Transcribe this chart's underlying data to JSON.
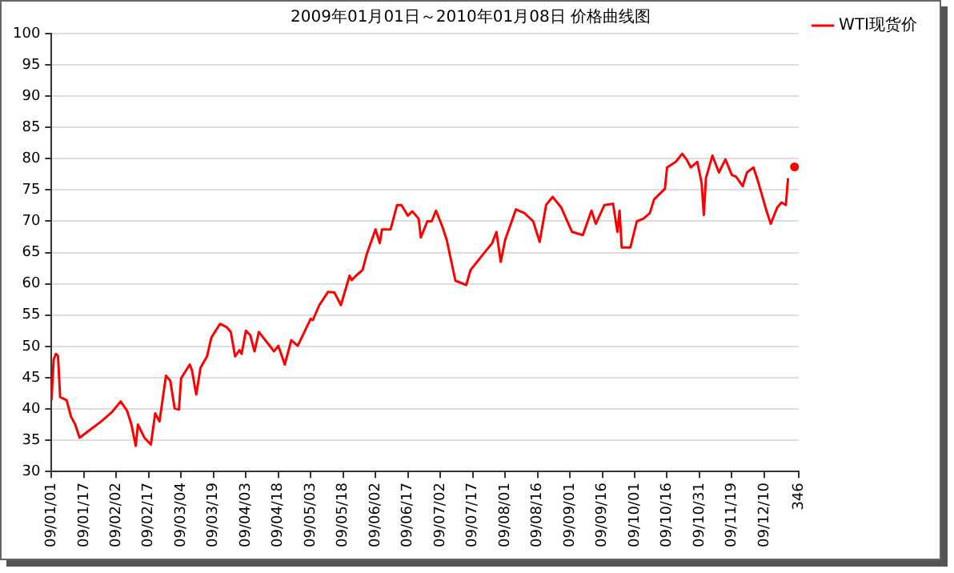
{
  "chart_data": {
    "type": "line",
    "title": "2009年01月01日～2010年01月08日 价格曲线图",
    "categories": [
      "09/01/01",
      null,
      null,
      null,
      null,
      null,
      null,
      null,
      null,
      null,
      null,
      null,
      null,
      null,
      null,
      "09/01/17",
      null,
      null,
      null,
      null,
      null,
      null,
      null,
      null,
      null,
      null,
      null,
      null,
      null,
      null,
      "09/02/02",
      null,
      null,
      null,
      null,
      null,
      null,
      null,
      null,
      null,
      null,
      null,
      null,
      null,
      null,
      "09/02/17",
      null,
      null,
      null,
      null,
      null,
      null,
      null,
      null,
      null,
      null,
      null,
      null,
      null,
      null,
      "09/03/04",
      null,
      null,
      null,
      null,
      null,
      null,
      null,
      null,
      null,
      null,
      null,
      null,
      null,
      null,
      "09/03/19",
      null,
      null,
      null,
      null,
      null,
      null,
      null,
      null,
      null,
      null,
      null,
      null,
      null,
      null,
      "09/04/03",
      null,
      null,
      null,
      null,
      null,
      null,
      null,
      null,
      null,
      null,
      null,
      null,
      null,
      null,
      "09/04/18",
      null,
      null,
      null,
      null,
      null,
      null,
      null,
      null,
      null,
      null,
      null,
      null,
      null,
      null,
      "09/05/03",
      null,
      null,
      null,
      null,
      null,
      null,
      null,
      null,
      null,
      null,
      null,
      null,
      null,
      null,
      "09/05/18",
      null,
      null,
      null,
      null,
      null,
      null,
      null,
      null,
      null,
      null,
      null,
      null,
      null,
      null,
      "09/06/02",
      null,
      null,
      null,
      null,
      null,
      null,
      null,
      null,
      null,
      null,
      null,
      null,
      null,
      null,
      "09/06/17",
      null,
      null,
      null,
      null,
      null,
      null,
      null,
      null,
      null,
      null,
      null,
      null,
      null,
      null,
      "09/07/02",
      null,
      null,
      null,
      null,
      null,
      null,
      null,
      null,
      null,
      null,
      null,
      null,
      null,
      null,
      "09/07/17",
      null,
      null,
      null,
      null,
      null,
      null,
      null,
      null,
      null,
      null,
      null,
      null,
      null,
      null,
      "09/08/01",
      null,
      null,
      null,
      null,
      null,
      null,
      null,
      null,
      null,
      null,
      null,
      null,
      null,
      null,
      "09/08/16",
      null,
      null,
      null,
      null,
      null,
      null,
      null,
      null,
      null,
      null,
      null,
      null,
      null,
      null,
      "09/09/01",
      null,
      null,
      null,
      null,
      null,
      null,
      null,
      null,
      null,
      null,
      null,
      null,
      null,
      null,
      "09/09/16",
      null,
      null,
      null,
      null,
      null,
      null,
      null,
      null,
      null,
      null,
      null,
      null,
      null,
      null,
      "09/10/01",
      null,
      null,
      null,
      null,
      null,
      null,
      null,
      null,
      null,
      null,
      null,
      null,
      null,
      null,
      "09/10/16",
      null,
      null,
      null,
      null,
      null,
      null,
      null,
      null,
      null,
      null,
      null,
      null,
      null,
      null,
      "09/10/31",
      null,
      null,
      null,
      null,
      null,
      null,
      null,
      null,
      null,
      null,
      null,
      null,
      null,
      null,
      "09/11/19",
      null,
      null,
      null,
      null,
      null,
      null,
      null,
      null,
      null,
      null,
      null,
      null,
      null,
      null,
      "09/12/10",
      null,
      null,
      null,
      null,
      null,
      null,
      null,
      null,
      null,
      null,
      null,
      null,
      null,
      null,
      null,
      "346"
    ],
    "ylim": [
      30,
      100
    ],
    "yticks": [
      30,
      35,
      40,
      45,
      50,
      55,
      60,
      65,
      70,
      75,
      80,
      85,
      90,
      95,
      100
    ],
    "grid": "y",
    "legend": "top right",
    "marker": "none",
    "line_style": "solid",
    "series": [
      {
        "name": "WTI现货价",
        "color": "#ff0000",
        "values": [
          41.4,
          47.9,
          48.8,
          48.5,
          41.9,
          null,
          null,
          41.4,
          null,
          38.8,
          null,
          37.5,
          null,
          35.4,
          null,
          null,
          null,
          null,
          36.7,
          null,
          null,
          null,
          null,
          38.0,
          null,
          null,
          null,
          null,
          39.5,
          null,
          null,
          null,
          41.2,
          null,
          null,
          39.7,
          null,
          37.5,
          null,
          34.1,
          37.5,
          null,
          null,
          35.4,
          null,
          null,
          34.3,
          null,
          39.3,
          null,
          38.0,
          null,
          null,
          45.3,
          null,
          44.5,
          null,
          40.1,
          null,
          39.9,
          44.9,
          null,
          null,
          null,
          47.1,
          46.2,
          null,
          42.3,
          null,
          46.6,
          null,
          null,
          48.4,
          null,
          51.4,
          null,
          null,
          null,
          53.6,
          null,
          null,
          53.1,
          null,
          52.3,
          null,
          48.4,
          null,
          49.4,
          48.8,
          null,
          52.5,
          null,
          51.8,
          null,
          49.2,
          null,
          52.3,
          null,
          null,
          null,
          null,
          50.1,
          null,
          49.2,
          null,
          50.1,
          null,
          null,
          47.1,
          null,
          null,
          51.0,
          null,
          null,
          50.1,
          null,
          null,
          null,
          null,
          null,
          54.4,
          54.2,
          null,
          null,
          56.6,
          null,
          null,
          null,
          58.7,
          null,
          null,
          58.6,
          null,
          null,
          56.6,
          null,
          null,
          null,
          61.3,
          60.6,
          null,
          61.3,
          null,
          null,
          62.2,
          null,
          64.8,
          null,
          null,
          null,
          68.7,
          null,
          66.5,
          68.7,
          null,
          null,
          null,
          68.7,
          null,
          null,
          72.6,
          null,
          72.6,
          null,
          null,
          70.9,
          null,
          71.6,
          null,
          null,
          70.4,
          67.4,
          null,
          null,
          70.0,
          null,
          70.0,
          null,
          71.7,
          null,
          null,
          69.1,
          null,
          67.0,
          null,
          null,
          null,
          60.5,
          null,
          null,
          null,
          null,
          59.8,
          null,
          62.2,
          null,
          null,
          null,
          null,
          null,
          64.8,
          null,
          null,
          null,
          66.5,
          null,
          68.3,
          null,
          63.5,
          null,
          67.0,
          null,
          null,
          null,
          null,
          71.9,
          null,
          null,
          null,
          71.3,
          null,
          null,
          null,
          70.0,
          null,
          null,
          66.7,
          null,
          null,
          72.6,
          null,
          null,
          73.9,
          null,
          null,
          null,
          72.2,
          null,
          null,
          null,
          null,
          68.3,
          null,
          null,
          null,
          null,
          67.8,
          null,
          null,
          null,
          71.7,
          null,
          69.6,
          null,
          null,
          null,
          72.6,
          null,
          null,
          null,
          72.8,
          null,
          68.3,
          71.7,
          65.8,
          null,
          null,
          null,
          65.8,
          null,
          null,
          70.0,
          null,
          null,
          70.4,
          null,
          null,
          71.3,
          null,
          73.5,
          null,
          null,
          null,
          null,
          75.2,
          78.6,
          null,
          null,
          null,
          79.5,
          null,
          null,
          80.8,
          null,
          79.9,
          null,
          78.6,
          null,
          null,
          79.5,
          null,
          76.1,
          71.0,
          76.9,
          null,
          null,
          80.5,
          null,
          null,
          77.8,
          null,
          null,
          79.9,
          null,
          null,
          77.4,
          null,
          77.1,
          null,
          null,
          75.6,
          null,
          77.8,
          null,
          null,
          78.6,
          null,
          76.5,
          null,
          null,
          null,
          71.7,
          null,
          69.6,
          null,
          null,
          72.2,
          null,
          73.0,
          null,
          72.6,
          76.9,
          null,
          null,
          null,
          null,
          null
        ]
      },
      {
        "color": "#ff0000",
        "marker": "circle",
        "values": [
          null,
          null,
          null,
          null,
          null,
          null,
          null,
          null,
          null,
          null,
          null,
          null,
          null,
          null,
          null,
          null,
          null,
          null,
          null,
          null,
          null,
          null,
          null,
          null,
          null,
          null,
          null,
          null,
          null,
          null,
          null,
          null,
          null,
          null,
          null,
          null,
          null,
          null,
          null,
          null,
          null,
          null,
          null,
          null,
          null,
          null,
          null,
          null,
          null,
          null,
          null,
          null,
          null,
          null,
          null,
          null,
          null,
          null,
          null,
          null,
          null,
          null,
          null,
          null,
          null,
          null,
          null,
          null,
          null,
          null,
          null,
          null,
          null,
          null,
          null,
          null,
          null,
          null,
          null,
          null,
          null,
          null,
          null,
          null,
          null,
          null,
          null,
          null,
          null,
          null,
          null,
          null,
          null,
          null,
          null,
          null,
          null,
          null,
          null,
          null,
          null,
          null,
          null,
          null,
          null,
          null,
          null,
          null,
          null,
          null,
          null,
          null,
          null,
          null,
          null,
          null,
          null,
          null,
          null,
          null,
          null,
          null,
          null,
          null,
          null,
          null,
          null,
          null,
          null,
          null,
          null,
          null,
          null,
          null,
          null,
          null,
          null,
          null,
          null,
          null,
          null,
          null,
          null,
          null,
          null,
          null,
          null,
          null,
          null,
          null,
          null,
          null,
          null,
          null,
          null,
          null,
          null,
          null,
          null,
          null,
          null,
          null,
          null,
          null,
          null,
          null,
          null,
          null,
          null,
          null,
          null,
          null,
          null,
          null,
          null,
          null,
          null,
          null,
          null,
          null,
          null,
          null,
          null,
          null,
          null,
          null,
          null,
          null,
          null,
          null,
          null,
          null,
          null,
          null,
          null,
          null,
          null,
          null,
          null,
          null,
          null,
          null,
          null,
          null,
          null,
          null,
          null,
          null,
          null,
          null,
          null,
          null,
          null,
          null,
          null,
          null,
          null,
          null,
          null,
          null,
          null,
          null,
          null,
          null,
          null,
          null,
          null,
          null,
          null,
          null,
          null,
          null,
          null,
          null,
          null,
          null,
          null,
          null,
          null,
          null,
          null,
          null,
          null,
          null,
          null,
          null,
          null,
          null,
          null,
          null,
          null,
          null,
          null,
          null,
          null,
          null,
          null,
          null,
          null,
          null,
          null,
          null,
          null,
          null,
          null,
          null,
          null,
          null,
          null,
          null,
          null,
          null,
          null,
          null,
          null,
          null,
          null,
          null,
          null,
          null,
          null,
          null,
          null,
          null,
          null,
          null,
          null,
          null,
          null,
          null,
          null,
          null,
          null,
          null,
          null,
          null,
          null,
          null,
          null,
          null,
          null,
          null,
          null,
          null,
          null,
          null,
          null,
          null,
          null,
          null,
          null,
          null,
          null,
          null,
          null,
          null,
          null,
          null,
          null,
          null,
          null,
          null,
          null,
          null,
          null,
          null,
          null,
          null,
          null,
          null,
          null,
          null,
          null,
          null,
          null,
          null,
          null,
          null,
          null,
          null,
          null,
          null,
          null,
          null,
          78.7,
          null,
          null
        ]
      }
    ]
  }
}
